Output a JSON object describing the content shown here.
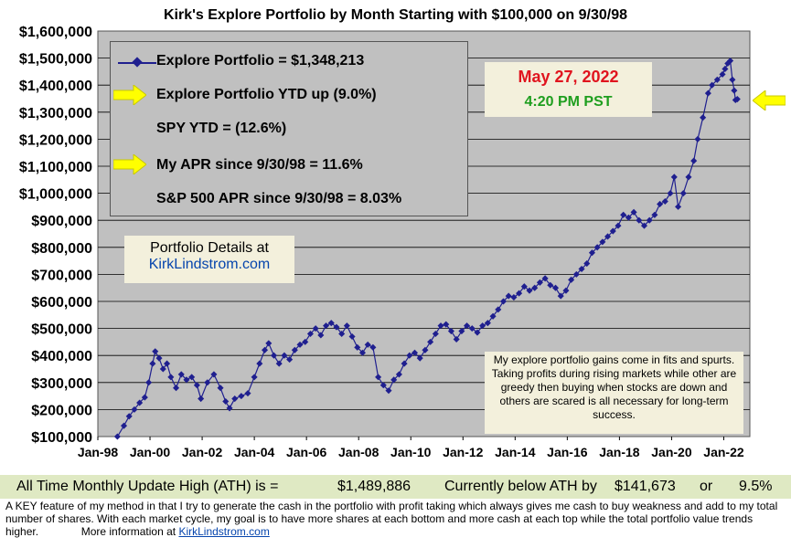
{
  "chart_data": {
    "type": "line",
    "title": "Kirk's Explore Portfolio by Month Starting with $100,000 on 9/30/98",
    "y_tick_labels": [
      "$100,000",
      "$200,000",
      "$300,000",
      "$400,000",
      "$500,000",
      "$600,000",
      "$700,000",
      "$800,000",
      "$900,000",
      "$1,000,000",
      "$1,100,000",
      "$1,200,000",
      "$1,300,000",
      "$1,400,000",
      "$1,500,000",
      "$1,600,000"
    ],
    "x_tick_labels": [
      "Jan-98",
      "Jan-00",
      "Jan-02",
      "Jan-04",
      "Jan-06",
      "Jan-08",
      "Jan-10",
      "Jan-12",
      "Jan-14",
      "Jan-16",
      "Jan-18",
      "Jan-20",
      "Jan-22"
    ],
    "x_range": [
      1998.0,
      2023.0
    ],
    "ylim": [
      100000,
      1600000
    ],
    "grid": true,
    "series": [
      {
        "name": "Explore Portfolio",
        "color": "#1f1f8f",
        "points": [
          [
            1998.75,
            100000
          ],
          [
            1999.0,
            140000
          ],
          [
            1999.2,
            175000
          ],
          [
            1999.4,
            200000
          ],
          [
            1999.6,
            225000
          ],
          [
            1999.8,
            245000
          ],
          [
            1999.95,
            300000
          ],
          [
            2000.1,
            370000
          ],
          [
            2000.2,
            415000
          ],
          [
            2000.35,
            390000
          ],
          [
            2000.5,
            350000
          ],
          [
            2000.65,
            370000
          ],
          [
            2000.8,
            320000
          ],
          [
            2001.0,
            280000
          ],
          [
            2001.2,
            330000
          ],
          [
            2001.4,
            310000
          ],
          [
            2001.6,
            320000
          ],
          [
            2001.8,
            290000
          ],
          [
            2001.95,
            240000
          ],
          [
            2002.2,
            300000
          ],
          [
            2002.45,
            330000
          ],
          [
            2002.7,
            280000
          ],
          [
            2002.9,
            230000
          ],
          [
            2003.05,
            205000
          ],
          [
            2003.25,
            240000
          ],
          [
            2003.5,
            250000
          ],
          [
            2003.75,
            260000
          ],
          [
            2004.0,
            320000
          ],
          [
            2004.2,
            370000
          ],
          [
            2004.4,
            420000
          ],
          [
            2004.55,
            445000
          ],
          [
            2004.75,
            400000
          ],
          [
            2004.95,
            370000
          ],
          [
            2005.15,
            400000
          ],
          [
            2005.35,
            385000
          ],
          [
            2005.55,
            420000
          ],
          [
            2005.75,
            440000
          ],
          [
            2005.95,
            450000
          ],
          [
            2006.15,
            480000
          ],
          [
            2006.35,
            500000
          ],
          [
            2006.55,
            475000
          ],
          [
            2006.75,
            510000
          ],
          [
            2006.95,
            520000
          ],
          [
            2007.15,
            505000
          ],
          [
            2007.35,
            480000
          ],
          [
            2007.55,
            510000
          ],
          [
            2007.75,
            470000
          ],
          [
            2007.95,
            430000
          ],
          [
            2008.15,
            410000
          ],
          [
            2008.35,
            440000
          ],
          [
            2008.55,
            430000
          ],
          [
            2008.75,
            320000
          ],
          [
            2008.95,
            290000
          ],
          [
            2009.15,
            270000
          ],
          [
            2009.35,
            310000
          ],
          [
            2009.55,
            330000
          ],
          [
            2009.75,
            370000
          ],
          [
            2009.95,
            400000
          ],
          [
            2010.15,
            410000
          ],
          [
            2010.35,
            390000
          ],
          [
            2010.55,
            420000
          ],
          [
            2010.75,
            450000
          ],
          [
            2010.95,
            480000
          ],
          [
            2011.15,
            510000
          ],
          [
            2011.35,
            515000
          ],
          [
            2011.55,
            490000
          ],
          [
            2011.75,
            460000
          ],
          [
            2011.95,
            490000
          ],
          [
            2012.15,
            510000
          ],
          [
            2012.35,
            500000
          ],
          [
            2012.55,
            485000
          ],
          [
            2012.75,
            510000
          ],
          [
            2012.95,
            520000
          ],
          [
            2013.15,
            545000
          ],
          [
            2013.35,
            570000
          ],
          [
            2013.55,
            600000
          ],
          [
            2013.75,
            620000
          ],
          [
            2013.95,
            615000
          ],
          [
            2014.15,
            630000
          ],
          [
            2014.35,
            655000
          ],
          [
            2014.55,
            640000
          ],
          [
            2014.75,
            650000
          ],
          [
            2014.95,
            670000
          ],
          [
            2015.15,
            685000
          ],
          [
            2015.35,
            660000
          ],
          [
            2015.55,
            650000
          ],
          [
            2015.75,
            620000
          ],
          [
            2015.95,
            640000
          ],
          [
            2016.15,
            680000
          ],
          [
            2016.35,
            700000
          ],
          [
            2016.55,
            720000
          ],
          [
            2016.75,
            740000
          ],
          [
            2016.95,
            780000
          ],
          [
            2017.15,
            800000
          ],
          [
            2017.35,
            820000
          ],
          [
            2017.55,
            840000
          ],
          [
            2017.75,
            860000
          ],
          [
            2017.95,
            880000
          ],
          [
            2018.15,
            920000
          ],
          [
            2018.35,
            910000
          ],
          [
            2018.55,
            930000
          ],
          [
            2018.75,
            900000
          ],
          [
            2018.95,
            880000
          ],
          [
            2019.15,
            900000
          ],
          [
            2019.35,
            920000
          ],
          [
            2019.55,
            960000
          ],
          [
            2019.75,
            970000
          ],
          [
            2019.95,
            1000000
          ],
          [
            2020.1,
            1060000
          ],
          [
            2020.25,
            950000
          ],
          [
            2020.45,
            1000000
          ],
          [
            2020.65,
            1060000
          ],
          [
            2020.85,
            1120000
          ],
          [
            2021.0,
            1200000
          ],
          [
            2021.2,
            1280000
          ],
          [
            2021.4,
            1370000
          ],
          [
            2021.55,
            1400000
          ],
          [
            2021.75,
            1420000
          ],
          [
            2021.95,
            1440000
          ],
          [
            2022.05,
            1460000
          ],
          [
            2022.15,
            1480000
          ],
          [
            2022.25,
            1490000
          ],
          [
            2022.33,
            1420000
          ],
          [
            2022.4,
            1380000
          ],
          [
            2022.45,
            1345000
          ],
          [
            2022.52,
            1348213
          ]
        ]
      }
    ]
  },
  "legend": {
    "series_label": "Explore Portfolio  =  $1,348,213",
    "ytd_label": "Explore Portfolio YTD up (9.0%)",
    "spy_label": "SPY YTD =  (12.6%)",
    "apr_label": "My APR since 9/30/98 =  11.6%",
    "sp500_label": "S&P 500 APR since 9/30/98 =  8.03%"
  },
  "date_box": {
    "date": "May 27, 2022",
    "time": "4:20 PM PST"
  },
  "details_box": {
    "line1": "Portfolio Details at",
    "link": "KirkLindstrom.com"
  },
  "note_box": {
    "text": "My explore portfolio gains come in fits and spurts. Taking profits during rising markets while other are greedy then buying when stocks are down and others are scared is all necessary for long-term success."
  },
  "ath_bar": {
    "label": "All Time Monthly Update High (ATH) is =",
    "ath_value": "$1,489,886",
    "below_label": "Currently below ATH by",
    "below_value": "$141,673",
    "or_label": "or",
    "below_pct": "9.5%"
  },
  "footer": {
    "text": "A KEY feature of my method in that I try to generate the cash in the portfolio with profit taking which always gives me cash to buy weakness and add to my total number of shares.  With each market cycle, my goal is to have more shares at each bottom and more cash at each top while the total portfolio value trends higher.",
    "more_label": "More information at",
    "link": "KirkLindstrom.com"
  },
  "colors": {
    "plot_bg": "#c0c0c0",
    "series": "#1f1f8f",
    "arrow_yellow": "#ffff00",
    "date_red": "#e0141e",
    "time_green": "#1e9e1e",
    "note_bg": "#f3f0dc",
    "ath_bg": "#dfe9c3"
  },
  "icons": {
    "arrow_right": "yellow-right-arrow-icon",
    "arrow_left": "yellow-left-arrow-icon"
  }
}
